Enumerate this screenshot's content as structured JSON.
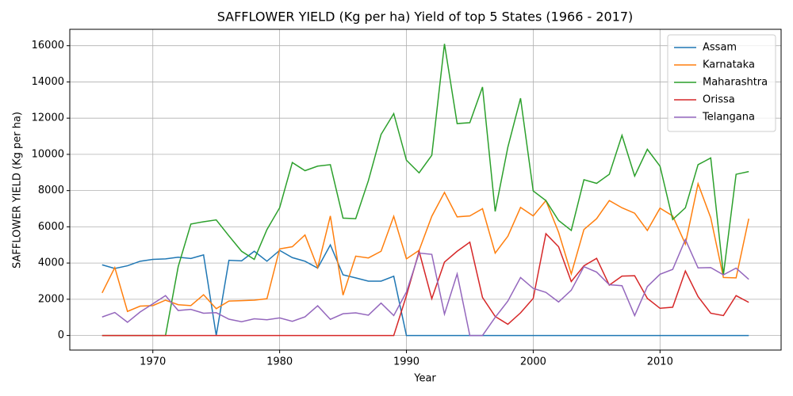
{
  "chart_data": {
    "type": "line",
    "title": "SAFFLOWER YIELD (Kg per ha) Yield of top 5 States (1966 - 2017)",
    "xlabel": "Year",
    "ylabel": "SAFFLOWER YIELD (Kg per ha)",
    "x": [
      1966,
      1967,
      1968,
      1969,
      1970,
      1971,
      1972,
      1973,
      1974,
      1975,
      1976,
      1977,
      1978,
      1979,
      1980,
      1981,
      1982,
      1983,
      1984,
      1985,
      1986,
      1987,
      1988,
      1989,
      1990,
      1991,
      1992,
      1993,
      1994,
      1995,
      1996,
      1997,
      1998,
      1999,
      2000,
      2001,
      2002,
      2003,
      2004,
      2005,
      2006,
      2007,
      2008,
      2009,
      2010,
      2011,
      2012,
      2013,
      2014,
      2015,
      2016,
      2017
    ],
    "series": [
      {
        "name": "Assam",
        "color": "#1f77b4",
        "values": [
          3900,
          3700,
          3850,
          4100,
          4200,
          4230,
          4320,
          4250,
          4450,
          0,
          4150,
          4120,
          4650,
          4100,
          4700,
          4300,
          4100,
          3720,
          5000,
          3350,
          3180,
          3000,
          3000,
          3270,
          0,
          0,
          0,
          0,
          0,
          0,
          0,
          0,
          0,
          0,
          0,
          0,
          0,
          0,
          0,
          0,
          0,
          0,
          0,
          0,
          0,
          0,
          0,
          0,
          0,
          0,
          0,
          0
        ]
      },
      {
        "name": "Karnataka",
        "color": "#ff7f0e",
        "values": [
          2350,
          3750,
          1330,
          1620,
          1650,
          1950,
          1700,
          1650,
          2250,
          1480,
          1900,
          1920,
          1950,
          2030,
          4780,
          4900,
          5550,
          3750,
          6600,
          2230,
          4380,
          4280,
          4650,
          6580,
          4230,
          4700,
          6580,
          7900,
          6550,
          6600,
          7000,
          4550,
          5480,
          7070,
          6600,
          7450,
          5700,
          3400,
          5850,
          6450,
          7450,
          7050,
          6750,
          5800,
          7030,
          6600,
          5050,
          8380,
          6500,
          3200,
          3180,
          6450
        ]
      },
      {
        "name": "Maharashtra",
        "color": "#2ca02c",
        "values": [
          0,
          0,
          0,
          0,
          0,
          0,
          3800,
          6150,
          6280,
          6380,
          5500,
          4650,
          4200,
          5850,
          7050,
          9550,
          9100,
          9350,
          9430,
          6480,
          6450,
          8550,
          11100,
          12250,
          9680,
          8980,
          9950,
          16100,
          11700,
          11750,
          13720,
          6850,
          10400,
          13100,
          7980,
          7450,
          6350,
          5800,
          8600,
          8400,
          8900,
          11050,
          8800,
          10280,
          9350,
          6400,
          7050,
          9430,
          9800,
          3350,
          8900,
          9050
        ]
      },
      {
        "name": "Orissa",
        "color": "#d62728",
        "values": [
          0,
          0,
          0,
          0,
          0,
          0,
          0,
          0,
          0,
          0,
          0,
          0,
          0,
          0,
          0,
          0,
          0,
          0,
          0,
          0,
          0,
          0,
          0,
          0,
          2200,
          4650,
          2030,
          4050,
          4650,
          5150,
          2100,
          1050,
          620,
          1250,
          2050,
          5620,
          4900,
          2980,
          3850,
          4260,
          2780,
          3280,
          3300,
          2050,
          1500,
          1560,
          3560,
          2150,
          1230,
          1100,
          2200,
          1830
        ]
      },
      {
        "name": "Telangana",
        "color": "#9467bd",
        "values": [
          1020,
          1270,
          730,
          1300,
          1750,
          2200,
          1380,
          1440,
          1230,
          1260,
          900,
          760,
          920,
          870,
          970,
          780,
          1030,
          1640,
          890,
          1200,
          1250,
          1120,
          1790,
          1100,
          2400,
          4550,
          4480,
          1180,
          3400,
          0,
          0,
          1000,
          1900,
          3200,
          2600,
          2380,
          1850,
          2500,
          3800,
          3500,
          2800,
          2750,
          1100,
          2700,
          3380,
          3650,
          5300,
          3730,
          3750,
          3350,
          3720,
          3100
        ]
      }
    ],
    "xlim": [
      1963.45,
      2019.55
    ],
    "ylim": [
      -805,
      16905
    ],
    "xticks": [
      1970,
      1980,
      1990,
      2000,
      2010
    ],
    "yticks": [
      0,
      2000,
      4000,
      6000,
      8000,
      10000,
      12000,
      14000,
      16000
    ],
    "grid": true,
    "legend": "upper right"
  }
}
